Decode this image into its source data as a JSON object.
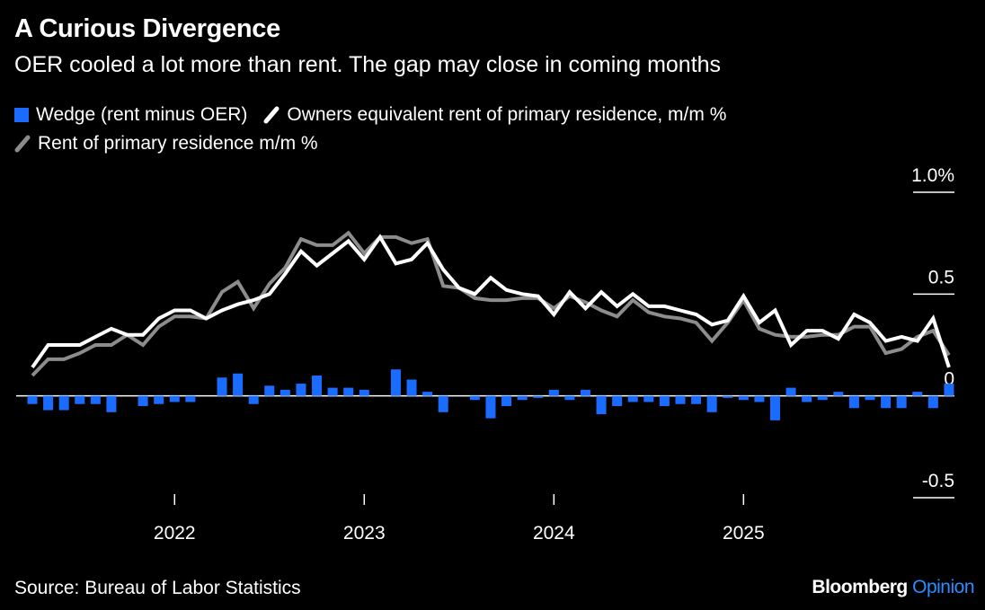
{
  "title": "A Curious Divergence",
  "subtitle": "OER cooled a lot more than rent. The gap may close in coming months",
  "source": "Source: Bureau of Labor Statistics",
  "brand": {
    "name": "Bloomberg",
    "suffix": "Opinion"
  },
  "colors": {
    "background": "#000000",
    "wedge": "#1a6bff",
    "oer": "#ffffff",
    "rent": "#8c8c8c",
    "brand_accent": "#2d8cff"
  },
  "chart_data": {
    "type": "line",
    "legend": [
      {
        "name": "Wedge (rent minus OER)",
        "kind": "bar",
        "color": "#1a6bff"
      },
      {
        "name": "Owners equivalent rent of primary residence, m/m %",
        "kind": "line",
        "color": "#ffffff"
      },
      {
        "name": "Rent of primary residence m/m %",
        "kind": "line",
        "color": "#8c8c8c"
      }
    ],
    "legend_placement": "top",
    "x_start": "2021-04",
    "x_end": "2025-09",
    "frequency": "monthly",
    "x_ticks": [
      "2022",
      "2023",
      "2024",
      "2025"
    ],
    "y_ticks": [
      "1.0%",
      "0.5",
      "0",
      "-0.5"
    ],
    "y_tick_values": [
      1.0,
      0.5,
      0,
      -0.5
    ],
    "ylim": [
      -0.55,
      1.05
    ],
    "grid": false,
    "y_axis_side": "right",
    "series": [
      {
        "name": "Owners equivalent rent of primary residence, m/m %",
        "type": "line",
        "values": [
          0.14,
          0.25,
          0.25,
          0.25,
          0.29,
          0.33,
          0.3,
          0.3,
          0.38,
          0.42,
          0.42,
          0.38,
          0.42,
          0.45,
          0.47,
          0.5,
          0.6,
          0.71,
          0.64,
          0.7,
          0.76,
          0.67,
          0.78,
          0.65,
          0.67,
          0.75,
          0.62,
          0.53,
          0.5,
          0.58,
          0.52,
          0.5,
          0.49,
          0.4,
          0.51,
          0.43,
          0.51,
          0.44,
          0.5,
          0.44,
          0.44,
          0.42,
          0.4,
          0.35,
          0.37,
          0.49,
          0.36,
          0.42,
          0.25,
          0.32,
          0.32,
          0.28,
          0.4,
          0.36,
          0.27,
          0.29,
          0.27,
          0.38,
          0.14
        ]
      },
      {
        "name": "Rent of primary residence m/m %",
        "type": "line",
        "values": [
          0.1,
          0.18,
          0.18,
          0.21,
          0.25,
          0.25,
          0.3,
          0.25,
          0.34,
          0.39,
          0.39,
          0.38,
          0.51,
          0.56,
          0.43,
          0.55,
          0.63,
          0.77,
          0.74,
          0.74,
          0.8,
          0.7,
          0.78,
          0.78,
          0.75,
          0.77,
          0.54,
          0.53,
          0.48,
          0.47,
          0.47,
          0.48,
          0.48,
          0.43,
          0.49,
          0.46,
          0.42,
          0.39,
          0.47,
          0.41,
          0.39,
          0.38,
          0.36,
          0.27,
          0.36,
          0.47,
          0.33,
          0.3,
          0.29,
          0.29,
          0.3,
          0.3,
          0.34,
          0.34,
          0.21,
          0.23,
          0.29,
          0.32,
          0.2
        ]
      },
      {
        "name": "Wedge (rent minus OER)",
        "type": "bar",
        "values": [
          -0.04,
          -0.07,
          -0.07,
          -0.04,
          -0.04,
          -0.08,
          0.0,
          -0.05,
          -0.04,
          -0.03,
          -0.03,
          0.0,
          0.09,
          0.11,
          -0.04,
          0.05,
          0.03,
          0.06,
          0.1,
          0.04,
          0.04,
          0.03,
          0.0,
          0.13,
          0.08,
          0.02,
          -0.08,
          0.0,
          -0.02,
          -0.11,
          -0.05,
          -0.02,
          -0.01,
          0.03,
          -0.02,
          0.03,
          -0.09,
          -0.05,
          -0.03,
          -0.03,
          -0.05,
          -0.04,
          -0.04,
          -0.08,
          -0.01,
          -0.02,
          -0.03,
          -0.12,
          0.04,
          -0.03,
          -0.02,
          0.02,
          -0.06,
          -0.02,
          -0.06,
          -0.06,
          0.02,
          -0.06,
          0.06
        ]
      }
    ]
  }
}
